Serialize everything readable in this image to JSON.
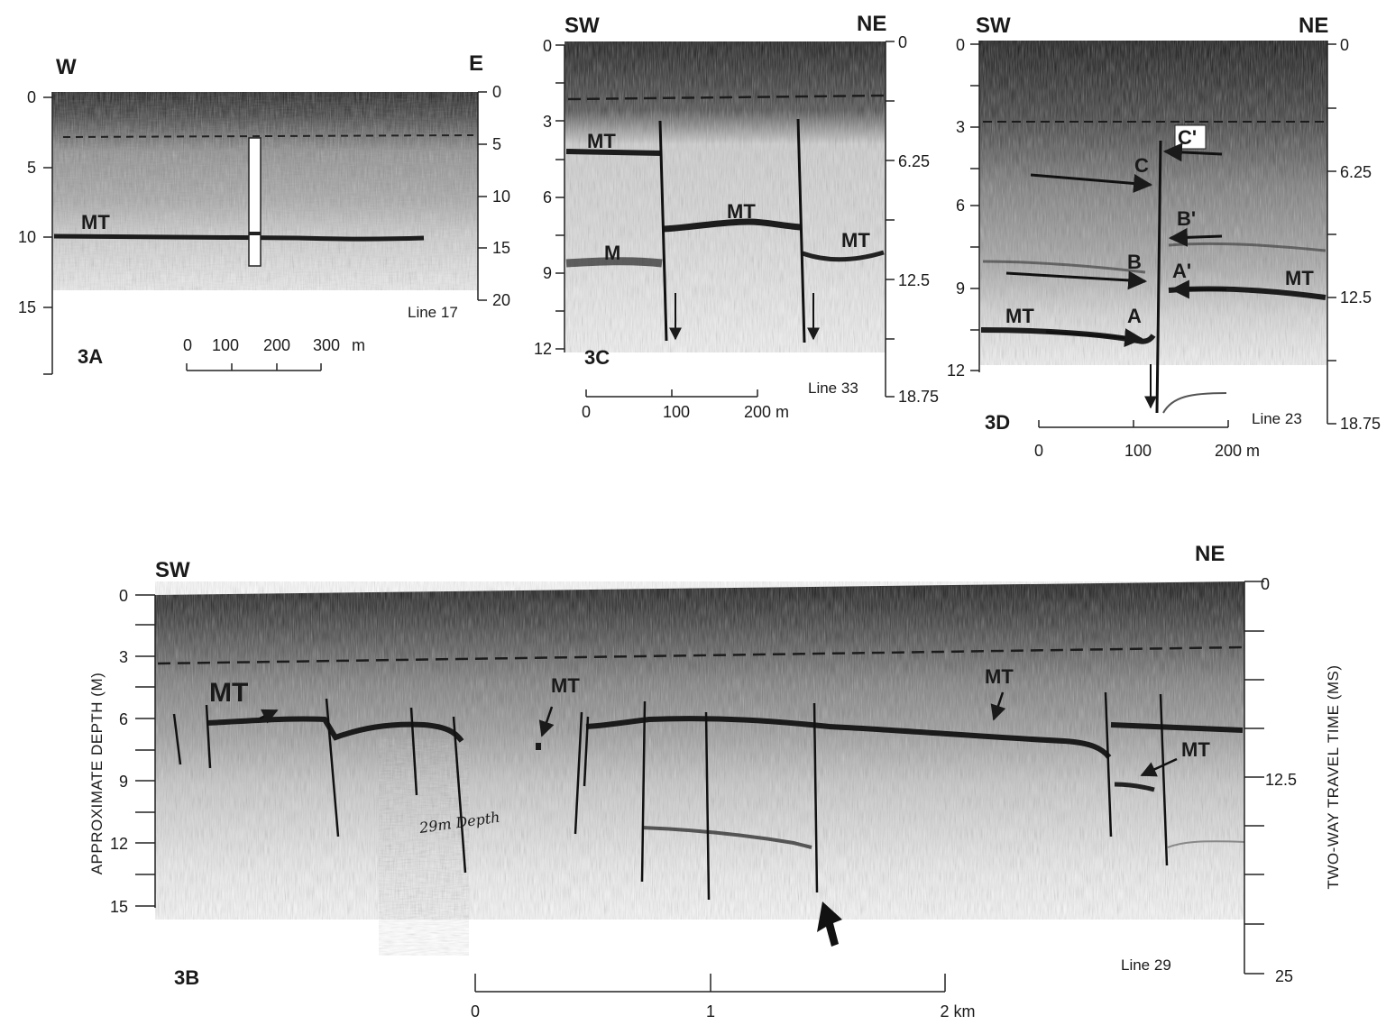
{
  "panel_3a": {
    "label": "3A",
    "dir_left": "W",
    "dir_right": "E",
    "line": "Line 17",
    "left_ticks": [
      "0",
      "5",
      "10",
      "15"
    ],
    "right_ticks": [
      "0",
      "5",
      "10",
      "15",
      "20"
    ],
    "reflector": "MT",
    "scale_labels": [
      "0",
      "100",
      "200",
      "300",
      "m"
    ]
  },
  "panel_3c": {
    "label": "3C",
    "dir_left": "SW",
    "dir_right": "NE",
    "line": "Line 33",
    "left_ticks": [
      "0",
      "3",
      "6",
      "9",
      "12"
    ],
    "right_ticks": [
      "0",
      "6.25",
      "12.5",
      "18.75"
    ],
    "reflectors": [
      "MT",
      "MT",
      "MT",
      "M"
    ],
    "scale_labels": [
      "0",
      "100",
      "200 m"
    ]
  },
  "panel_3d": {
    "label": "3D",
    "dir_left": "SW",
    "dir_right": "NE",
    "line": "Line 23",
    "left_ticks": [
      "0",
      "3",
      "6",
      "9",
      "12"
    ],
    "right_ticks": [
      "0",
      "6.25",
      "12.5",
      "18.75"
    ],
    "reflectors": [
      "MT",
      "MT"
    ],
    "markers": [
      "C'",
      "C",
      "B'",
      "B",
      "A'",
      "A"
    ],
    "scale_labels": [
      "0",
      "100",
      "200 m"
    ]
  },
  "panel_3b": {
    "label": "3B",
    "dir_left": "SW",
    "dir_right": "NE",
    "line": "Line 29",
    "left_ticks": [
      "0",
      "3",
      "6",
      "9",
      "12",
      "15"
    ],
    "right_ticks": [
      "0",
      "12.5",
      "25"
    ],
    "left_axis_title": "APPROXIMATE DEPTH (M)",
    "right_axis_title": "TWO-WAY TRAVEL TIME (MS)",
    "reflectors": [
      "MT",
      "MT",
      "MT",
      "MT"
    ],
    "handwritten_note": "29m Depth",
    "scale_labels": [
      "0",
      "1",
      "2 km"
    ]
  },
  "colors": {
    "ink": "#1a1a1a",
    "record_dark": "#2a2a2a",
    "record_light": "#bdbdbd"
  }
}
